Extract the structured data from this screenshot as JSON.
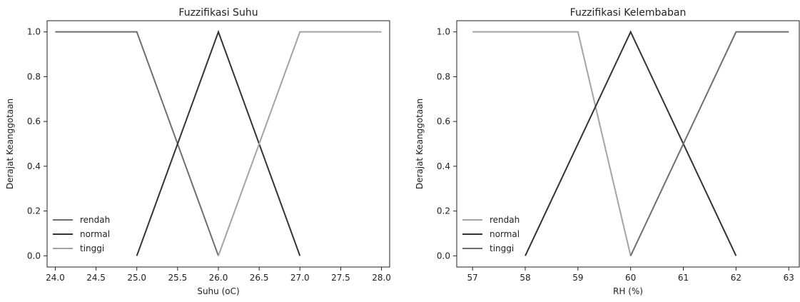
{
  "chart_data": [
    {
      "type": "line",
      "title": "Fuzzifikasi Suhu",
      "xlabel": "Suhu (oC)",
      "ylabel": "Derajat Keanggotaan",
      "xlim": [
        23.9,
        28.1
      ],
      "ylim": [
        -0.05,
        1.05
      ],
      "xticks": [
        "24.0",
        "24.5",
        "25.0",
        "25.5",
        "26.0",
        "26.5",
        "27.0",
        "27.5",
        "28.0"
      ],
      "yticks": [
        "0.0",
        "0.2",
        "0.4",
        "0.6",
        "0.8",
        "1.0"
      ],
      "legend_position": "lower-left",
      "grid": false,
      "series": [
        {
          "name": "rendah",
          "color": "#6e6e6e",
          "x": [
            24,
            25,
            26
          ],
          "y": [
            1,
            1,
            0
          ]
        },
        {
          "name": "normal",
          "color": "#333333",
          "x": [
            25,
            26,
            27
          ],
          "y": [
            0,
            1,
            0
          ]
        },
        {
          "name": "tinggi",
          "color": "#a3a3a3",
          "x": [
            26,
            27,
            28
          ],
          "y": [
            0,
            1,
            1
          ]
        }
      ]
    },
    {
      "type": "line",
      "title": "Fuzzifikasi Kelembaban",
      "xlabel": "RH (%)",
      "ylabel": "Derajat Keanggotaan",
      "xlim": [
        56.7,
        63.2
      ],
      "ylim": [
        -0.05,
        1.05
      ],
      "xticks": [
        "57",
        "58",
        "59",
        "60",
        "61",
        "62",
        "63"
      ],
      "yticks": [
        "0.0",
        "0.2",
        "0.4",
        "0.6",
        "0.8",
        "1.0"
      ],
      "legend_position": "lower-left",
      "grid": false,
      "series": [
        {
          "name": "rendah",
          "color": "#a3a3a3",
          "x": [
            57,
            59,
            60
          ],
          "y": [
            1,
            1,
            0
          ]
        },
        {
          "name": "normal",
          "color": "#333333",
          "x": [
            58,
            60,
            62
          ],
          "y": [
            0,
            1,
            0
          ]
        },
        {
          "name": "tinggi",
          "color": "#6e6e6e",
          "x": [
            60,
            62,
            63
          ],
          "y": [
            0,
            1,
            1
          ]
        }
      ]
    }
  ]
}
